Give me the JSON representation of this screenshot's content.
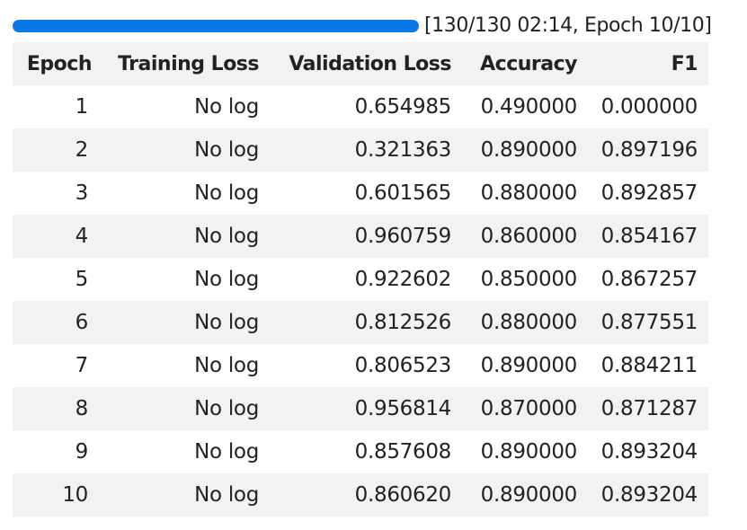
{
  "progress": {
    "fraction": 1.0,
    "text": "[130/130 02:14, Epoch 10/10]",
    "bar_color": "#0a77e6"
  },
  "table": {
    "headers": [
      "Epoch",
      "Training Loss",
      "Validation Loss",
      "Accuracy",
      "F1"
    ],
    "rows": [
      [
        "1",
        "No log",
        "0.654985",
        "0.490000",
        "0.000000"
      ],
      [
        "2",
        "No log",
        "0.321363",
        "0.890000",
        "0.897196"
      ],
      [
        "3",
        "No log",
        "0.601565",
        "0.880000",
        "0.892857"
      ],
      [
        "4",
        "No log",
        "0.960759",
        "0.860000",
        "0.854167"
      ],
      [
        "5",
        "No log",
        "0.922602",
        "0.850000",
        "0.867257"
      ],
      [
        "6",
        "No log",
        "0.812526",
        "0.880000",
        "0.877551"
      ],
      [
        "7",
        "No log",
        "0.806523",
        "0.890000",
        "0.884211"
      ],
      [
        "8",
        "No log",
        "0.956814",
        "0.870000",
        "0.871287"
      ],
      [
        "9",
        "No log",
        "0.857608",
        "0.890000",
        "0.893204"
      ],
      [
        "10",
        "No log",
        "0.860620",
        "0.890000",
        "0.893204"
      ]
    ]
  }
}
